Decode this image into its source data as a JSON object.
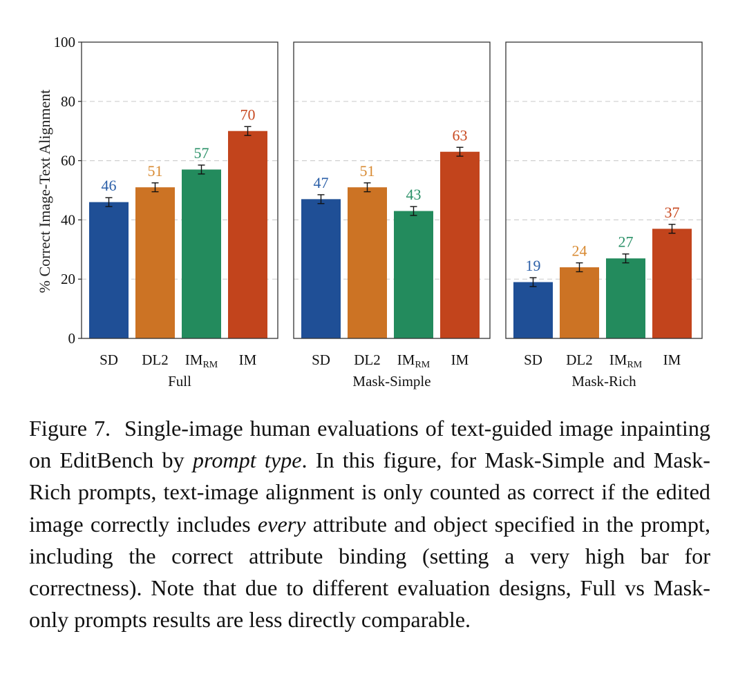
{
  "chart_data": {
    "type": "bar",
    "title": "",
    "xlabel": "",
    "ylabel": "% Correct Image-Text Alignment",
    "ylim": [
      0,
      100
    ],
    "yticks": [
      0,
      20,
      40,
      60,
      80,
      100
    ],
    "grid": true,
    "categories": [
      {
        "main": "SD",
        "sub": ""
      },
      {
        "main": "DL2",
        "sub": ""
      },
      {
        "main": "IM",
        "sub": "RM"
      },
      {
        "main": "IM",
        "sub": ""
      }
    ],
    "colors": [
      "#1f4f96",
      "#cc7324",
      "#238b5d",
      "#c2441c"
    ],
    "label_colors": [
      "#2b5fa8",
      "#d88a32",
      "#2b9168",
      "#c84a21"
    ],
    "panels": [
      {
        "name": "Full",
        "values": [
          46,
          51,
          57,
          70
        ],
        "errors": [
          1.5,
          1.5,
          1.5,
          1.5
        ]
      },
      {
        "name": "Mask-Simple",
        "values": [
          47,
          51,
          43,
          63
        ],
        "errors": [
          1.5,
          1.5,
          1.5,
          1.5
        ]
      },
      {
        "name": "Mask-Rich",
        "values": [
          19,
          24,
          27,
          37
        ],
        "errors": [
          1.5,
          1.5,
          1.5,
          1.5
        ]
      }
    ]
  },
  "caption": {
    "label": "Figure 7.",
    "part1": "Single-image human evaluations of text-guided image inpainting on EditBench by ",
    "em1": "prompt type",
    "part2": ". In this figure, for Mask-Simple and Mask-Rich prompts, text-image alignment is only counted as correct if the edited image correctly includes ",
    "em2": "every",
    "part3": " attribute and object specified in the prompt, including the correct attribute binding (setting a very high bar for correctness). Note that due to different evaluation designs, Full vs Mask-only prompts results are less directly comparable."
  }
}
